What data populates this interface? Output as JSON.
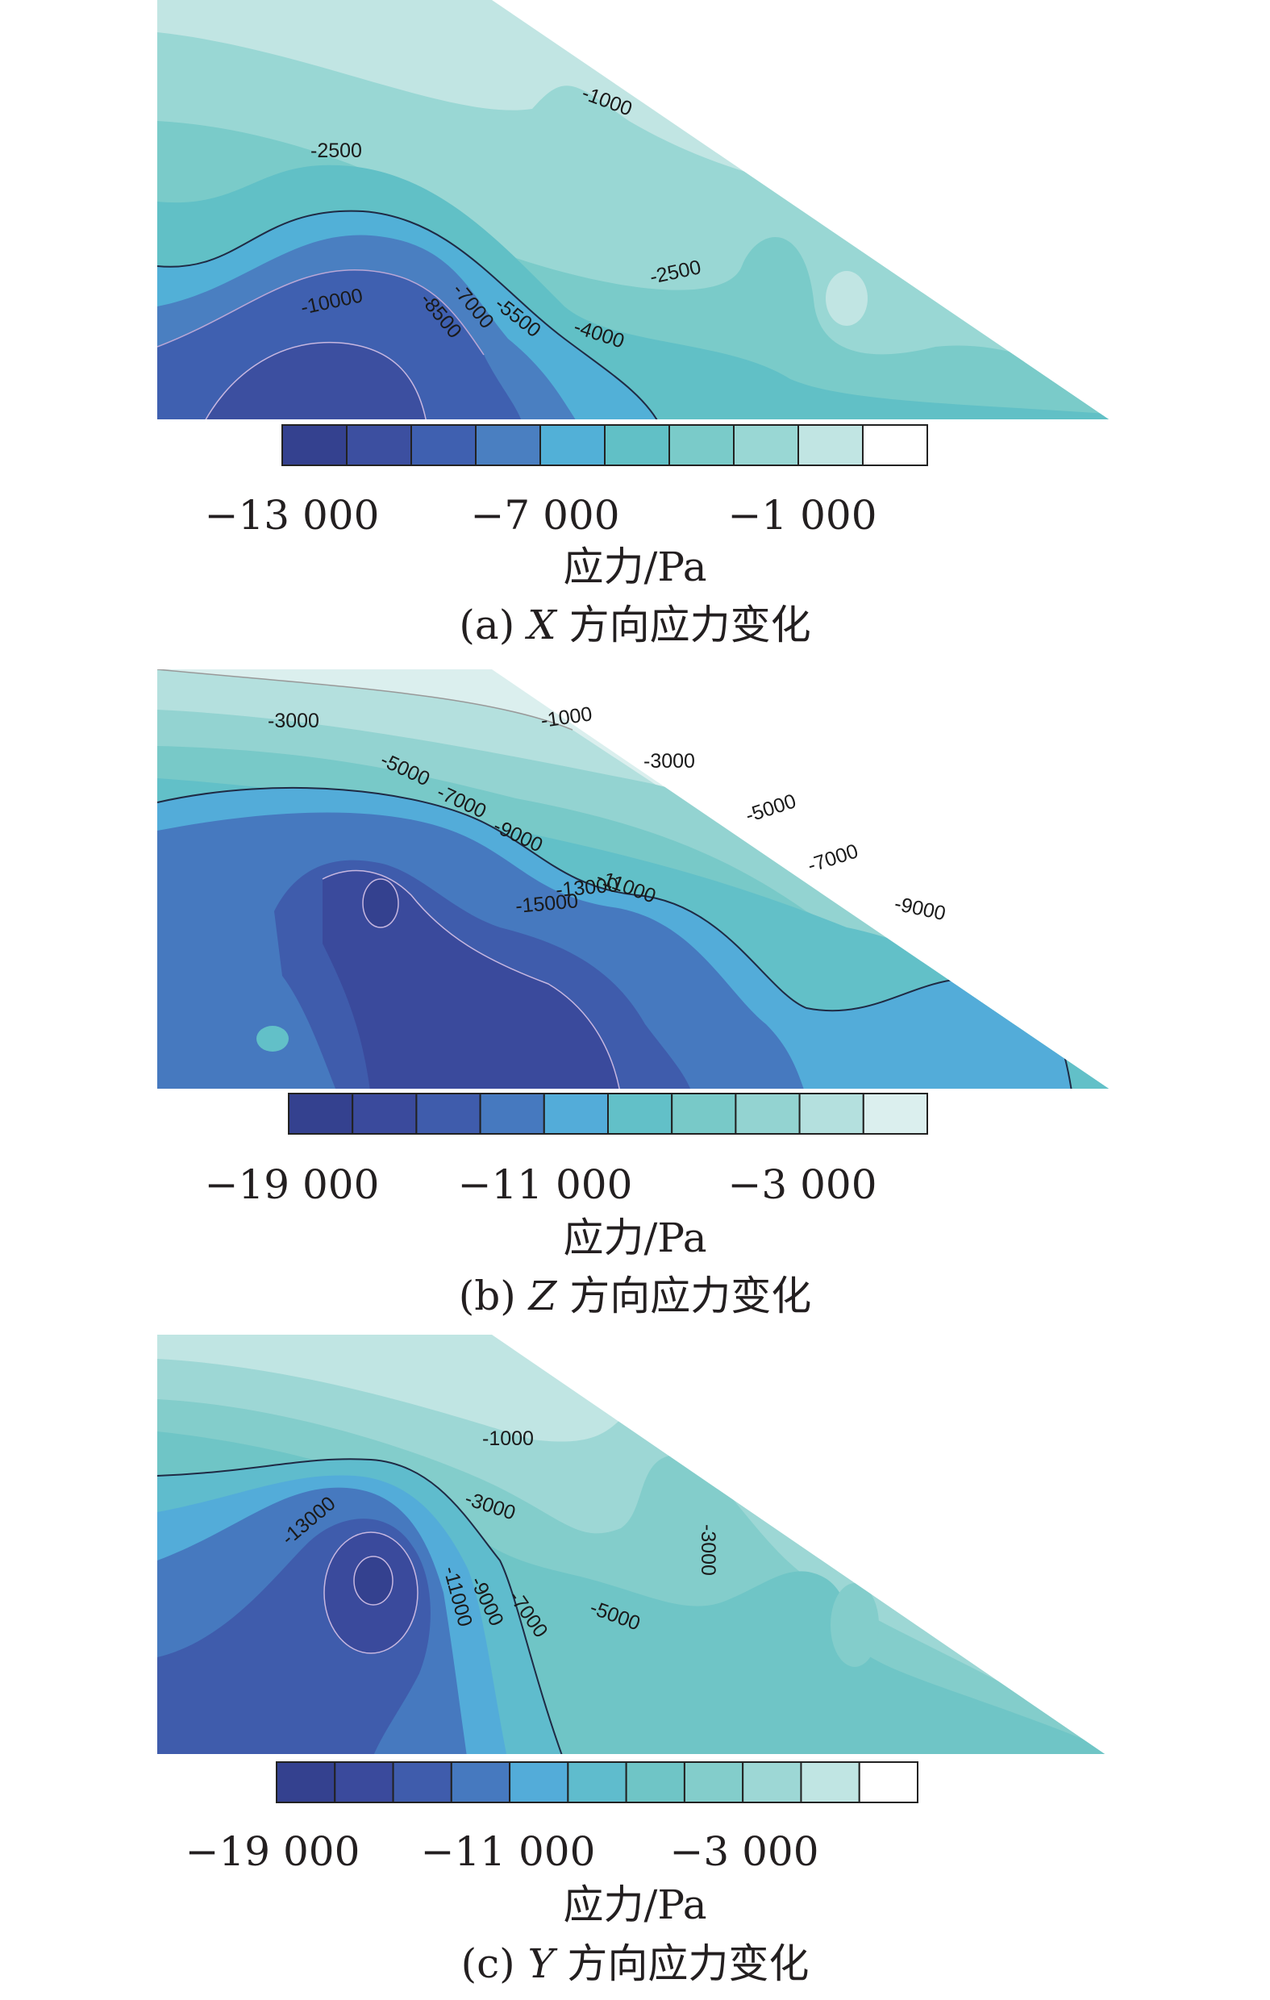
{
  "chart_data": [
    {
      "type": "contour",
      "title": "",
      "caption": {
        "prefix": "(a)",
        "axis": "X",
        "text": "方向应力变化"
      },
      "unit_label": "应力/Pa",
      "colorbar": {
        "tick_labels": [
          "−13 000",
          "−7 000",
          "−1 000"
        ],
        "levels": 10,
        "colors": [
          "#34418f",
          "#3c4fa0",
          "#3f60b0",
          "#4a7fc1",
          "#52b0d7",
          "#61c0c6",
          "#7acbc9",
          "#99d7d4",
          "#c1e5e3",
          "#ffffff"
        ]
      },
      "contour_labels": [
        "-1000",
        "-2500",
        "-2500",
        "-4000",
        "-5500",
        "-7000",
        "-8500",
        "-10000"
      ]
    },
    {
      "type": "contour",
      "title": "",
      "caption": {
        "prefix": "(b)",
        "axis": "Z",
        "text": "方向应力变化"
      },
      "unit_label": "应力/Pa",
      "colorbar": {
        "tick_labels": [
          "−19 000",
          "−11 000",
          "−3 000"
        ],
        "levels": 10,
        "colors": [
          "#34418f",
          "#3a4a9c",
          "#3f5cac",
          "#4679bf",
          "#53acd9",
          "#62c0c8",
          "#78c9c8",
          "#93d3d1",
          "#b4e0de",
          "#dbefee"
        ]
      },
      "contour_labels": [
        "-1000",
        "-3000",
        "-3000",
        "-5000",
        "-5000",
        "-7000",
        "-7000",
        "-9000",
        "-9000",
        "-11000",
        "-13000",
        "-15000"
      ]
    },
    {
      "type": "contour",
      "title": "",
      "caption": {
        "prefix": "(c)",
        "axis": "Y",
        "text": "方向应力变化"
      },
      "unit_label": "应力/Pa",
      "colorbar": {
        "tick_labels": [
          "−19 000",
          "−11 000",
          "−3 000"
        ],
        "levels": 11,
        "colors": [
          "#34418f",
          "#3a4a9c",
          "#3f5cac",
          "#4679bf",
          "#53acd9",
          "#5fbccd",
          "#6fc5c6",
          "#83cdcb",
          "#9dd7d5",
          "#c0e5e3",
          "#ffffff"
        ]
      },
      "contour_labels": [
        "-1000",
        "-3000",
        "-3000",
        "-5000",
        "-7000",
        "-9000",
        "-11000",
        "-13000"
      ]
    }
  ]
}
